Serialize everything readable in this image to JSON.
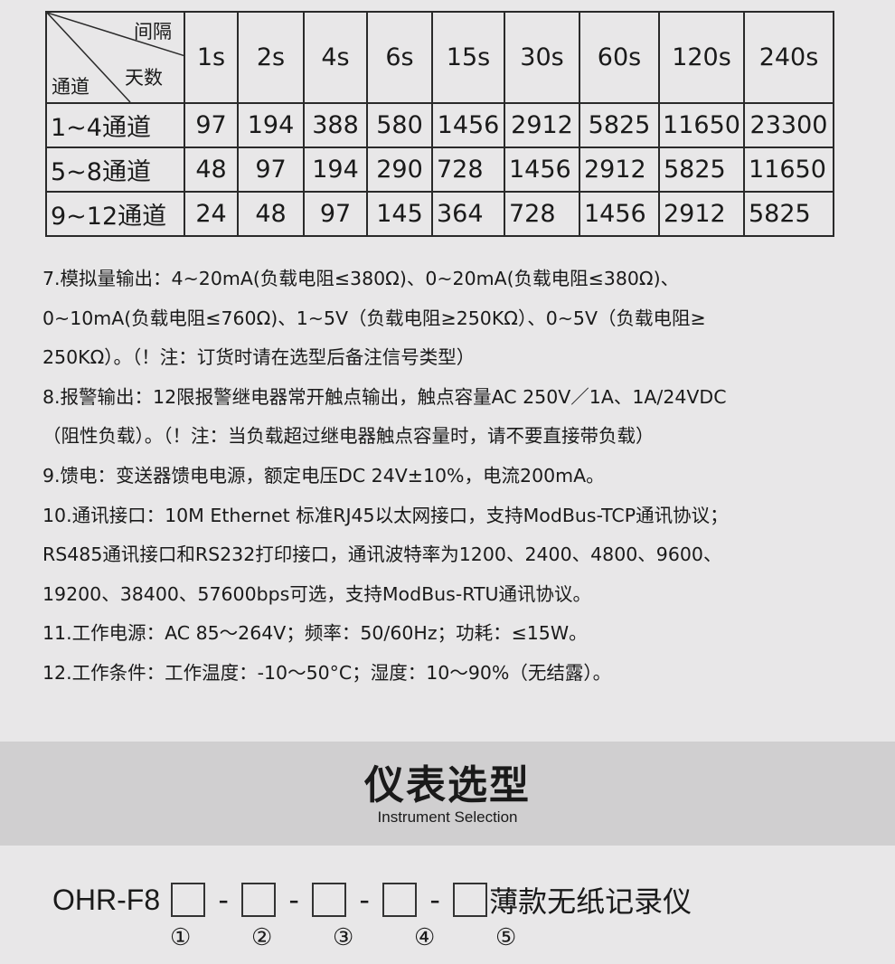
{
  "table": {
    "corner": {
      "top_right": "间隔",
      "middle": "天数",
      "bottom_left": "通道"
    },
    "columns": [
      "1s",
      "2s",
      "4s",
      "6s",
      "15s",
      "30s",
      "60s",
      "120s",
      "240s"
    ],
    "rows": [
      {
        "label": "1~4通道",
        "values": [
          "97",
          "194",
          "388",
          "580",
          "1456",
          "2912",
          "5825",
          "11650",
          "23300"
        ]
      },
      {
        "label": "5~8通道",
        "values": [
          "48",
          "97",
          "194",
          "290",
          "728",
          "1456",
          "2912",
          "5825",
          "11650"
        ]
      },
      {
        "label": "9~12通道",
        "values": [
          "24",
          "48",
          "97",
          "145",
          "364",
          "728",
          "1456",
          "2912",
          "5825"
        ]
      }
    ]
  },
  "spec_lines": [
    "7.模拟量输出：4~20mA(负载电阻≤380Ω)、0~20mA(负载电阻≤380Ω)、",
    "0~10mA(负载电阻≤760Ω)、1~5V（负载电阻≥250KΩ）、0~5V（负载电阻≥",
    "250KΩ）。（！注：订货时请在选型后备注信号类型）",
    "8.报警输出：12限报警继电器常开触点输出，触点容量AC 250V／1A、1A/24VDC",
    "（阻性负载）。（！注：当负载超过继电器触点容量时，请不要直接带负载）",
    "9.馈电：变送器馈电电源，额定电压DC 24V±10%，电流200mA。",
    "10.通讯接口：10M  Ethernet 标准RJ45以太网接口，支持ModBus-TCP通讯协议；",
    "RS485通讯接口和RS232打印接口，通讯波特率为1200、2400、4800、9600、",
    "19200、38400、57600bps可选，支持ModBus-RTU通讯协议。",
    "11.工作电源：AC 85～264V；频率：50/60Hz；功耗：≤15W。",
    "12.工作条件：工作温度：-10～50°C；湿度：10～90%（无结露）。"
  ],
  "section": {
    "title": "仪表选型",
    "subtitle": "Instrument Selection"
  },
  "model": {
    "prefix": "OHR-F8",
    "separator": "-",
    "suffix": "薄款无纸记录仪",
    "slot_numbers": [
      "①",
      "②",
      "③",
      "④",
      "⑤"
    ]
  }
}
